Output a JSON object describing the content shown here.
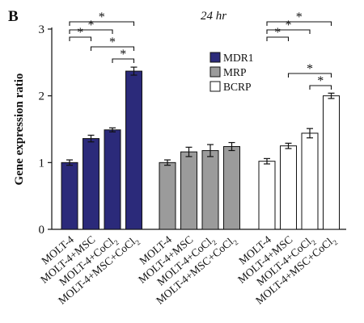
{
  "panel_label": "B",
  "chart_data": {
    "type": "bar",
    "title": "24 hr",
    "ylabel": "Gene expression ratio",
    "xlabel": "",
    "ylim": [
      0,
      3
    ],
    "yticks": [
      "0",
      "1",
      "2",
      "3"
    ],
    "legend_position": "top-center",
    "colors": {
      "MDR1": "#2b2a7a",
      "MRP": "#9b9b9b",
      "BCRP": "#ffffff"
    },
    "groups": [
      {
        "series": "MDR1",
        "categories": [
          "MOLT-4",
          "MOLT-4+MSC",
          "MOLT-4+CoCl",
          "MOLT-4+MSC+CoCl"
        ],
        "values": [
          1.0,
          1.36,
          1.49,
          2.37
        ],
        "errors": [
          0.04,
          0.05,
          0.03,
          0.06
        ]
      },
      {
        "series": "MRP",
        "categories": [
          "MOLT-4",
          "MOLT-4+MSC",
          "MOLT-4+CoCl",
          "MOLT-4+MSC+CoCl"
        ],
        "values": [
          1.0,
          1.16,
          1.18,
          1.24
        ],
        "errors": [
          0.04,
          0.07,
          0.09,
          0.06
        ]
      },
      {
        "series": "BCRP",
        "categories": [
          "MOLT-4",
          "MOLT-4+MSC",
          "MOLT-4+CoCl",
          "MOLT-4+MSC+CoCl"
        ],
        "values": [
          1.02,
          1.25,
          1.44,
          2.0
        ],
        "errors": [
          0.04,
          0.04,
          0.07,
          0.04
        ]
      }
    ],
    "label_subscript": [
      "",
      "",
      "2",
      "2"
    ],
    "legend": [
      "MDR1",
      "MRP",
      "BCRP"
    ],
    "significance": [
      {
        "group": 0,
        "from": 0,
        "to": 3,
        "label": "*"
      },
      {
        "group": 0,
        "from": 0,
        "to": 2,
        "label": "*"
      },
      {
        "group": 0,
        "from": 0,
        "to": 1,
        "label": "*"
      },
      {
        "group": 0,
        "from": 1,
        "to": 3,
        "label": "*"
      },
      {
        "group": 0,
        "from": 2,
        "to": 3,
        "label": "*"
      },
      {
        "group": 2,
        "from": 0,
        "to": 3,
        "label": "*"
      },
      {
        "group": 2,
        "from": 0,
        "to": 2,
        "label": "*"
      },
      {
        "group": 2,
        "from": 0,
        "to": 1,
        "label": "*"
      },
      {
        "group": 2,
        "from": 1,
        "to": 3,
        "label": "*"
      },
      {
        "group": 2,
        "from": 2,
        "to": 3,
        "label": "*"
      }
    ]
  }
}
